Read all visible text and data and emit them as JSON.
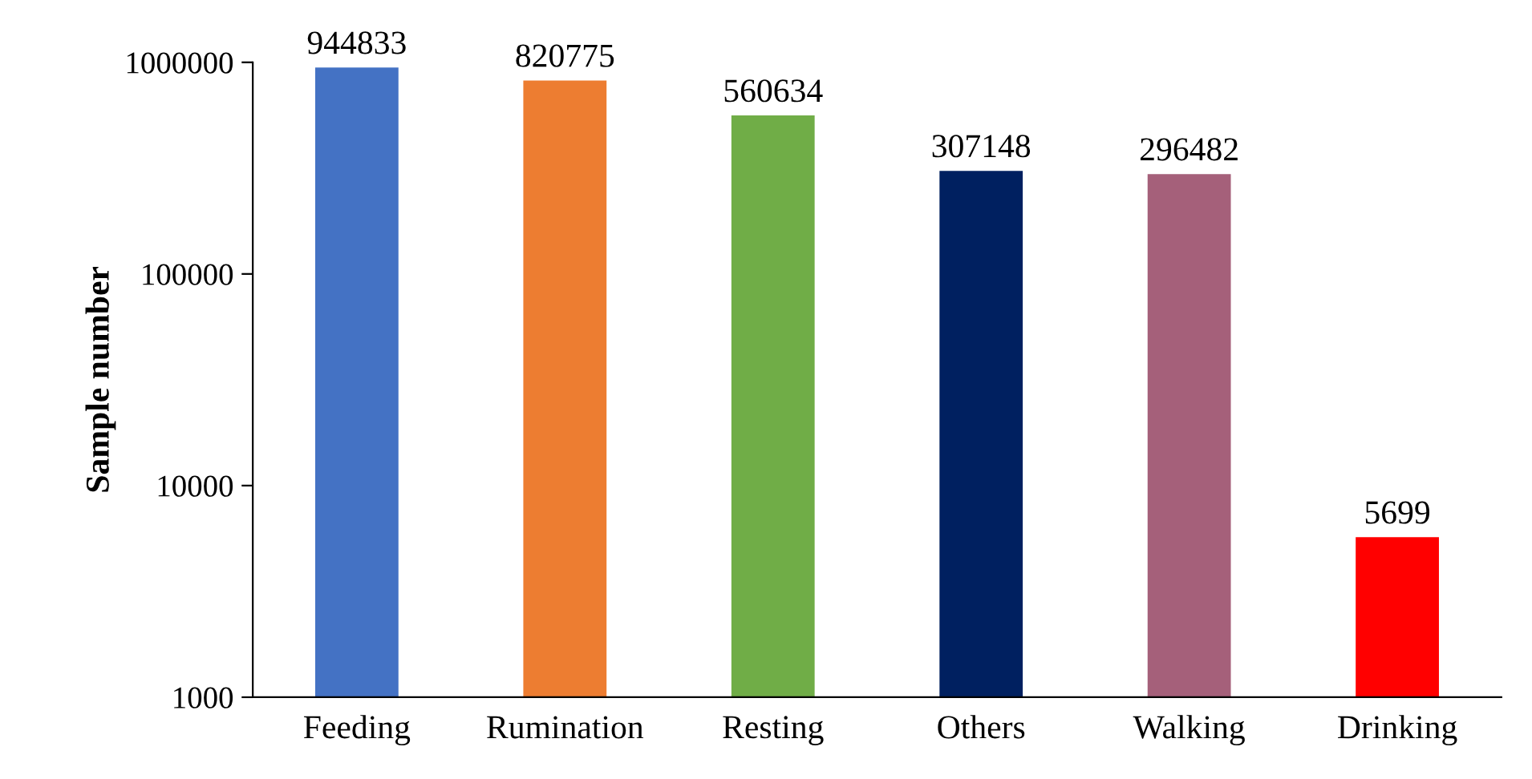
{
  "chart_data": {
    "type": "bar",
    "ylabel": "Sample number",
    "categories": [
      "Feeding",
      "Rumination",
      "Resting",
      "Others",
      "Walking",
      "Drinking"
    ],
    "values": [
      944833,
      820775,
      560634,
      307148,
      296482,
      5699
    ],
    "colors": [
      "#4472c4",
      "#ed7d31",
      "#70ad47",
      "#002060",
      "#a5607a",
      "#ff0000"
    ],
    "log": true,
    "ylim": [
      1000,
      1000000
    ],
    "yticks": [
      1000,
      10000,
      100000,
      1000000
    ],
    "data_labels": true,
    "grid": false,
    "legend": false
  }
}
